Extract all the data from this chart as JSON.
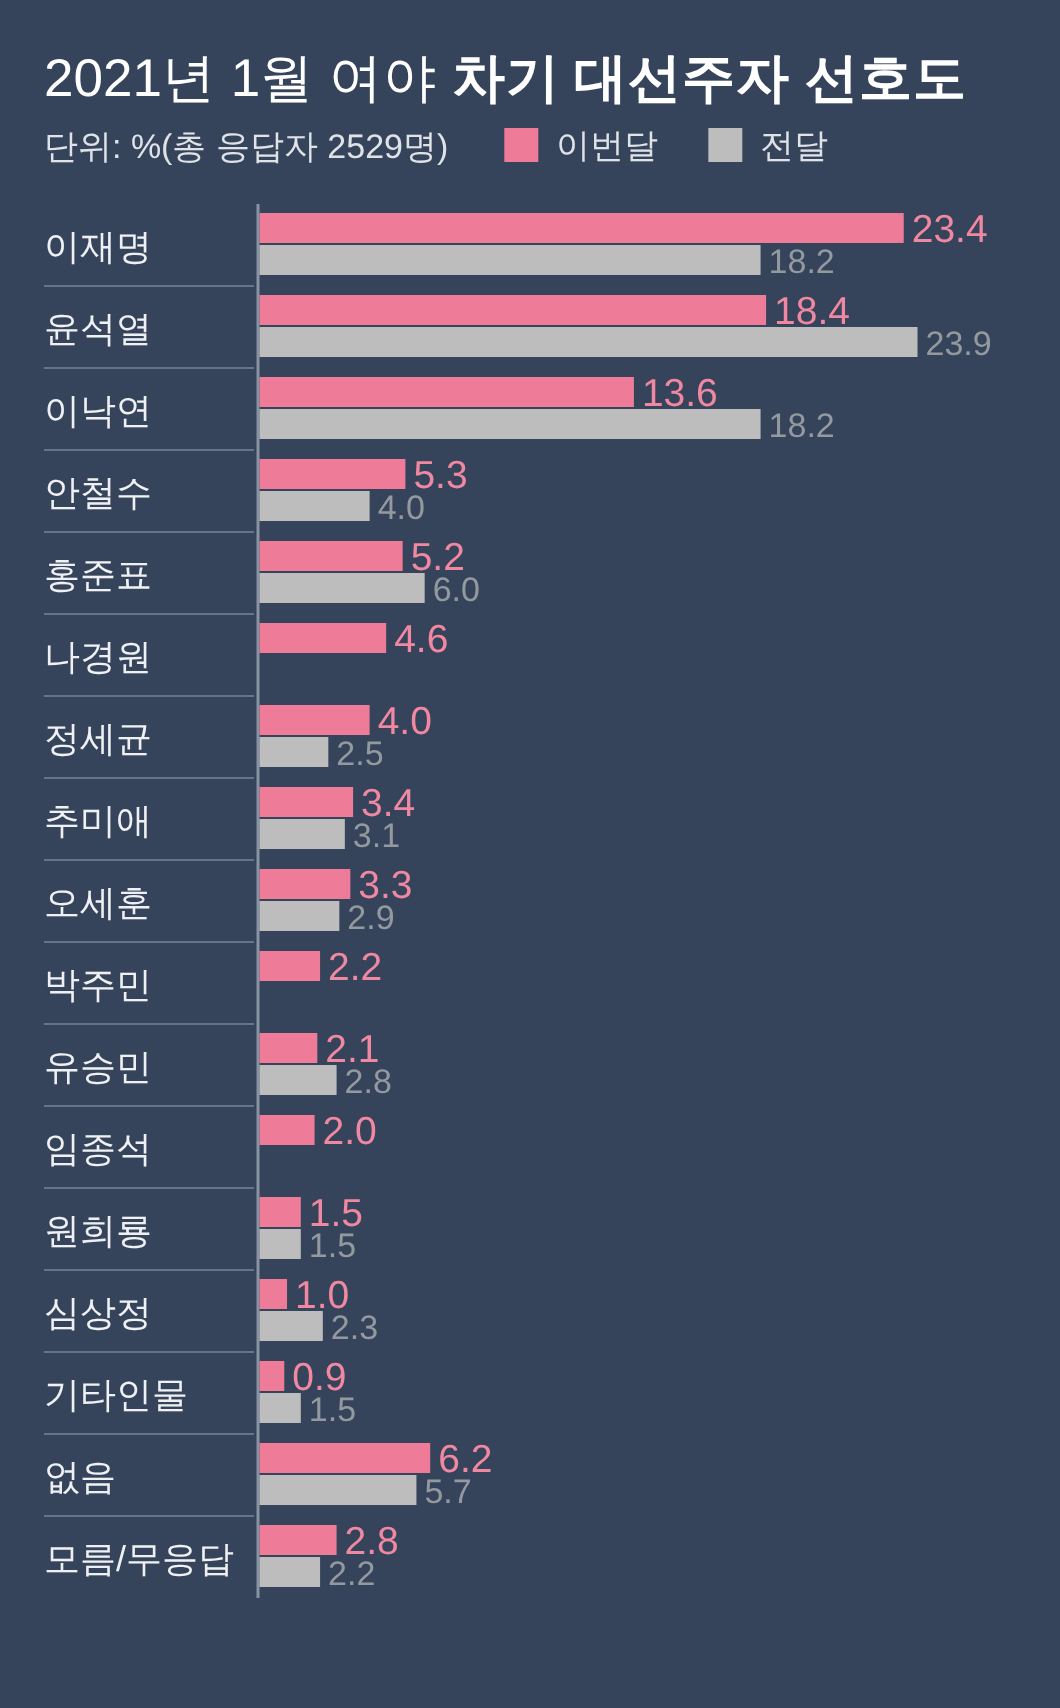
{
  "chart_data": {
    "type": "bar",
    "orientation": "horizontal",
    "title": "2021년 1월 여야 차기 대선주자 선호도",
    "subtitle": "단위: %(총 응답자 2529명)",
    "categories": [
      "이재명",
      "윤석열",
      "이낙연",
      "안철수",
      "홍준표",
      "나경원",
      "정세균",
      "추미애",
      "오세훈",
      "박주민",
      "유승민",
      "임종석",
      "원희룡",
      "심상정",
      "기타인물",
      "없음",
      "모름/무응답"
    ],
    "series": [
      {
        "name": "이번달",
        "color": "#ee7b98",
        "values": [
          23.4,
          18.4,
          13.6,
          5.3,
          5.2,
          4.6,
          4.0,
          3.4,
          3.3,
          2.2,
          2.1,
          2.0,
          1.5,
          1.0,
          0.9,
          6.2,
          2.8
        ],
        "value_labels": [
          "23.4",
          "18.4",
          "13.6",
          "5.3",
          "5.2",
          "4.6",
          "4.0",
          "3.4",
          "3.3",
          "2.2",
          "2.1",
          "2.0",
          "1.5",
          "1.0",
          "0.9",
          "6.2",
          "2.8"
        ]
      },
      {
        "name": "전달",
        "color": "#bdbdbd",
        "values": [
          18.2,
          23.9,
          18.2,
          4.0,
          6.0,
          null,
          2.5,
          3.1,
          2.9,
          null,
          2.8,
          null,
          1.5,
          2.3,
          1.5,
          5.7,
          2.2
        ],
        "value_labels": [
          "18.2",
          "23.9",
          "18.2",
          "4.0",
          "6.0",
          null,
          "2.5",
          "3.1",
          "2.9",
          null,
          "2.8",
          null,
          "1.5",
          "2.3",
          "1.5",
          "5.7",
          "2.2"
        ]
      }
    ],
    "legend": "top"
  }
}
